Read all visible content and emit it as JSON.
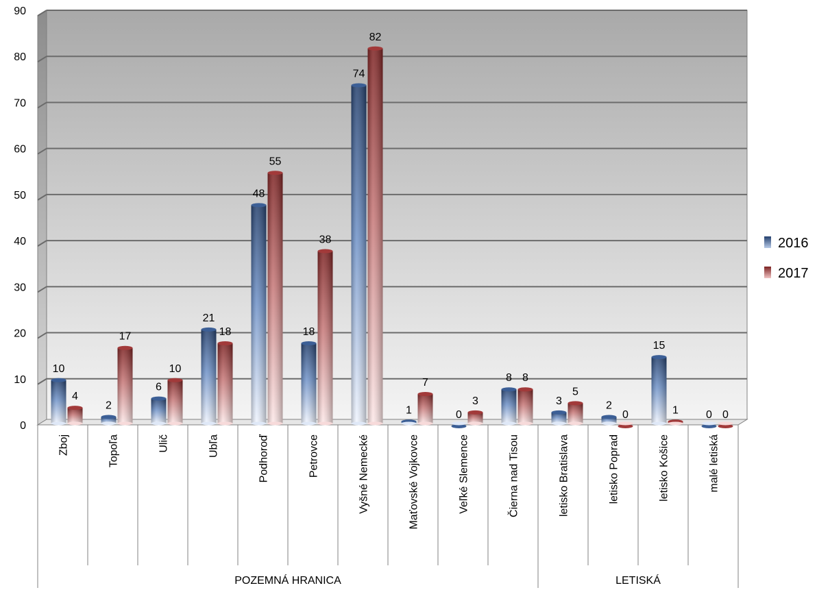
{
  "chart_data": {
    "type": "bar",
    "title": "",
    "xlabel": "",
    "ylabel": "",
    "ylim": [
      0,
      90
    ],
    "yticks": [
      0,
      10,
      20,
      30,
      40,
      50,
      60,
      70,
      80,
      90
    ],
    "grid": true,
    "legend_position": "right",
    "categories": [
      "Zboj",
      "Topoľa",
      "Ulič",
      "Ubľa",
      "Podhoroď",
      "Petrovce",
      "Vyšné Nemecké",
      "Maťovské Vojkovce",
      "Veľké Slemence",
      "Čierna nad Tisou",
      "letisko Bratislava",
      "letisko Poprad",
      "letisko Košice",
      "malé letiská"
    ],
    "groups": [
      {
        "label": "POZEMNÁ HRANICA",
        "categories": [
          "Zboj",
          "Topoľa",
          "Ulič",
          "Ubľa",
          "Podhoroď",
          "Petrovce",
          "Vyšné Nemecké",
          "Maťovské Vojkovce",
          "Veľké Slemence",
          "Čierna nad Tisou"
        ]
      },
      {
        "label": "LETISKÁ",
        "categories": [
          "letisko Bratislava",
          "letisko Poprad",
          "letisko Košice",
          "malé letiská"
        ]
      }
    ],
    "series": [
      {
        "name": "2016",
        "color": "#2e4f82",
        "values": [
          10,
          2,
          6,
          21,
          48,
          18,
          74,
          1,
          0,
          8,
          3,
          2,
          15,
          0
        ]
      },
      {
        "name": "2017",
        "color": "#8e2b2b",
        "values": [
          4,
          17,
          10,
          18,
          55,
          38,
          82,
          7,
          3,
          8,
          5,
          0,
          1,
          0
        ]
      }
    ]
  }
}
